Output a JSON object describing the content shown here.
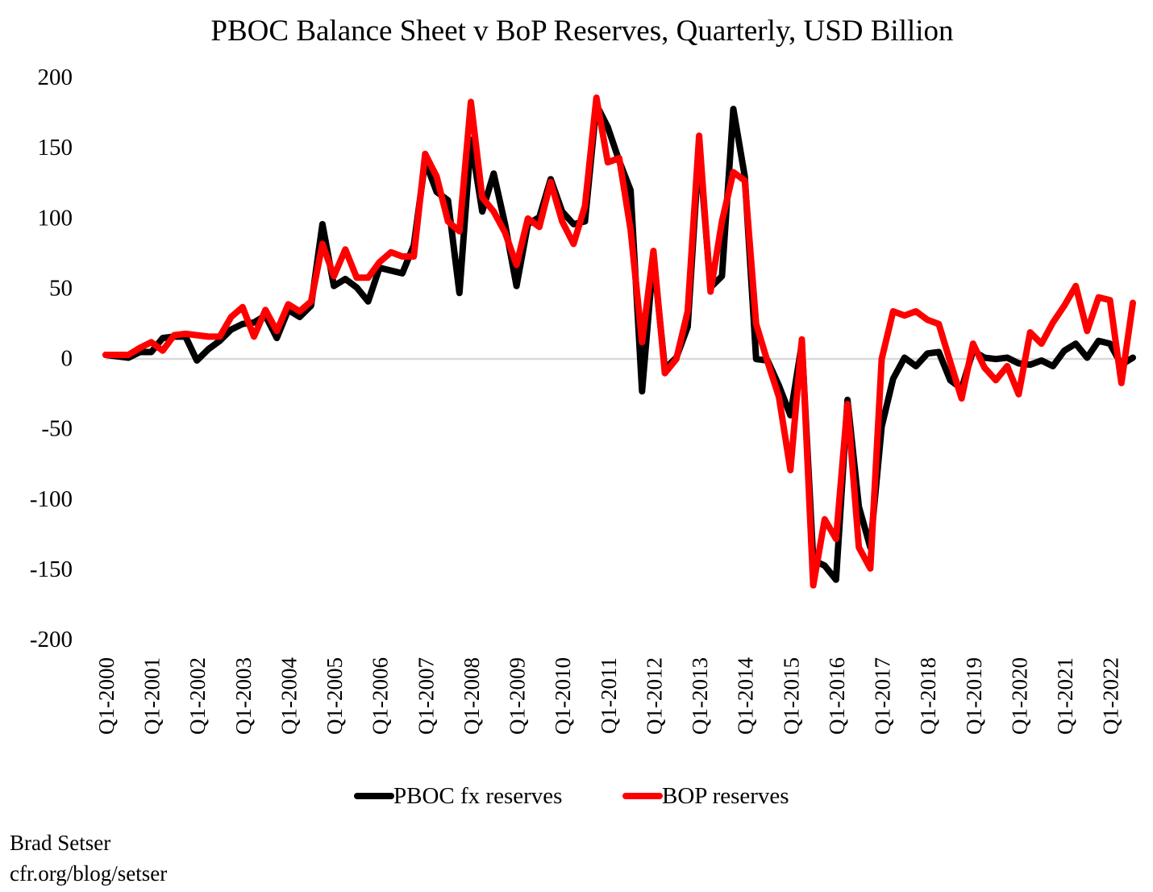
{
  "chart_data": {
    "type": "line",
    "title": "PBOC Balance Sheet v BoP Reserves, Quarterly, USD Billion",
    "xlabel": "",
    "ylabel": "",
    "ylim": [
      -200,
      200
    ],
    "yticks": [
      200,
      150,
      100,
      50,
      0,
      -50,
      -100,
      -150,
      -200
    ],
    "x_start": "Q1-2000",
    "x_end": "Q3-2022",
    "xtick_labels": [
      "Q1-2000",
      "Q1-2001",
      "Q1-2002",
      "Q1-2003",
      "Q1-2004",
      "Q1-2005",
      "Q1-2006",
      "Q1-2007",
      "Q1-2008",
      "Q1-2009",
      "Q1-2010",
      "Q1-2011",
      "Q1-2012",
      "Q1-2013",
      "Q1-2014",
      "Q1-2015",
      "Q1-2016",
      "Q1-2017",
      "Q1-2018",
      "Q1-2019",
      "Q1-2020",
      "Q1-2021",
      "Q1-2022"
    ],
    "grid": false,
    "zero_line": true,
    "legend_placement": "bottom",
    "series": [
      {
        "name": "PBOC fx reserves",
        "color": "#000000",
        "values": [
          2,
          1,
          0,
          4,
          4,
          14,
          15,
          15,
          -2,
          6,
          12,
          20,
          24,
          25,
          30,
          14,
          34,
          29,
          37,
          95,
          51,
          56,
          50,
          40,
          64,
          62,
          60,
          80,
          140,
          118,
          112,
          46,
          155,
          104,
          131,
          95,
          51,
          95,
          100,
          127,
          104,
          95,
          97,
          180,
          164,
          140,
          119,
          -24,
          72,
          -8,
          0,
          22,
          150,
          50,
          58,
          177,
          129,
          -1,
          -2,
          -20,
          -41,
          10,
          -144,
          -148,
          -158,
          -30,
          -106,
          -135,
          -49,
          -15,
          0,
          -6,
          3,
          4,
          -16,
          -22,
          5,
          0,
          -1,
          0,
          -4,
          -5,
          -2,
          -6,
          5,
          10,
          0,
          12,
          10,
          -5,
          0
        ]
      },
      {
        "name": "BOP reserves",
        "color": "#ff0000",
        "values": [
          2,
          2,
          2,
          7,
          11,
          5,
          16,
          17,
          16,
          15,
          15,
          29,
          36,
          15,
          34,
          19,
          38,
          33,
          40,
          81,
          58,
          77,
          57,
          57,
          68,
          75,
          72,
          72,
          145,
          129,
          97,
          90,
          182,
          114,
          104,
          89,
          66,
          99,
          93,
          125,
          97,
          81,
          108,
          185,
          139,
          142,
          91,
          11,
          76,
          -11,
          -1,
          33,
          158,
          47,
          97,
          132,
          126,
          24,
          -3,
          -28,
          -80,
          13,
          -162,
          -115,
          -129,
          -33,
          -135,
          -150,
          -1,
          33,
          30,
          33,
          27,
          24,
          -3,
          -29,
          10,
          -7,
          -16,
          -6,
          -26,
          18,
          10,
          25,
          37,
          51,
          19,
          43,
          41,
          -18,
          39
        ]
      }
    ]
  },
  "footer": {
    "author": "Brad Setser",
    "source": "cfr.org/blog/setser"
  }
}
